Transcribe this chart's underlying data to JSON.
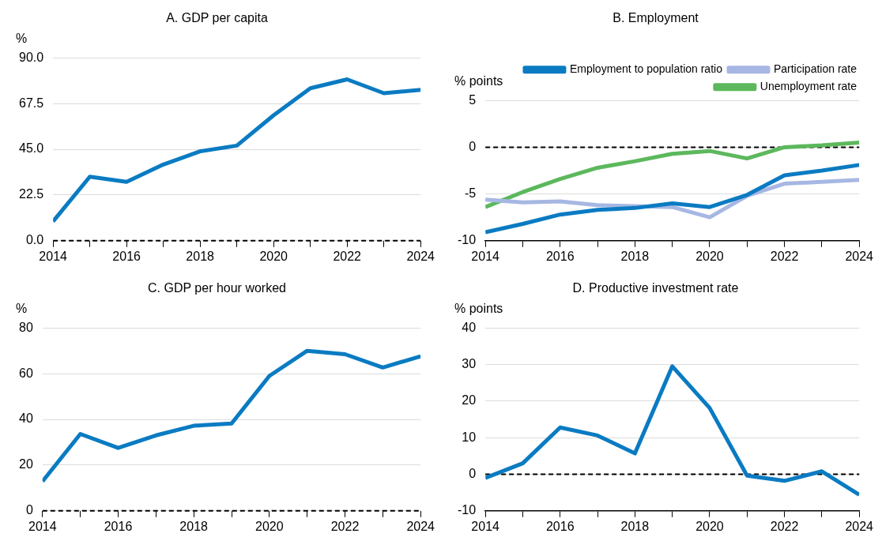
{
  "chart_data": [
    {
      "type": "line",
      "title": "A. GDP per capita",
      "ylabel": "%",
      "x": [
        2014,
        2015,
        2016,
        2017,
        2018,
        2019,
        2020,
        2021,
        2022,
        2023,
        2024
      ],
      "series": [
        {
          "color": "#0a7bc2",
          "values": [
            9.5,
            31.5,
            29,
            37.5,
            44,
            46.8,
            61.7,
            75,
            79.4,
            72.6,
            74.2
          ]
        }
      ],
      "xlim": [
        2014,
        2024
      ],
      "xticks": [
        2014,
        {
          "value": 2015,
          "label": null
        },
        2016,
        {
          "value": 2017,
          "label": null
        },
        2018,
        {
          "value": 2019,
          "label": null
        },
        2020,
        {
          "value": 2021,
          "label": null
        },
        2022,
        {
          "value": 2023,
          "label": null
        },
        2024
      ],
      "ylim": [
        0,
        90
      ],
      "yticks": [
        {
          "value": 0,
          "label": "0.0"
        },
        22.5,
        {
          "value": 45,
          "label": "45.0"
        },
        67.5,
        {
          "value": 90,
          "label": "90.0"
        }
      ],
      "grid": "y",
      "legend": false,
      "marker": "none",
      "line_style": "solid",
      "ref_lines": [
        {
          "axis": "y",
          "value": 0,
          "color": "#000000",
          "line_style": "dashed"
        }
      ]
    },
    {
      "type": "line",
      "title": "B. Employment",
      "ylabel": "% points",
      "x": [
        2014,
        2015,
        2016,
        2017,
        2018,
        2019,
        2020,
        2021,
        2022,
        2023,
        2024
      ],
      "series": [
        {
          "name": "Employment to population ratio",
          "color": "#0a7bc2",
          "values": [
            -9.1,
            -8.2,
            -7.2,
            -6.7,
            -6.5,
            -6.0,
            -6.4,
            -5.1,
            -3.0,
            -2.5,
            -1.9
          ]
        },
        {
          "name": "Participation rate",
          "color": "#a7b7e3",
          "values": [
            -5.6,
            -5.9,
            -5.8,
            -6.2,
            -6.3,
            -6.4,
            -7.5,
            -5.2,
            -3.9,
            -3.7,
            -3.5
          ]
        },
        {
          "name": "Unemployment rate",
          "color": "#5cb85c",
          "values": [
            -6.4,
            -4.8,
            -3.4,
            -2.2,
            -1.5,
            -0.7,
            -0.4,
            -1.2,
            0.0,
            0.2,
            0.5
          ]
        }
      ],
      "xlim": [
        2014,
        2024
      ],
      "xticks": [
        2014,
        {
          "value": 2015,
          "label": null
        },
        2016,
        {
          "value": 2017,
          "label": null
        },
        2018,
        {
          "value": 2019,
          "label": null
        },
        2020,
        {
          "value": 2021,
          "label": null
        },
        2022,
        {
          "value": 2023,
          "label": null
        },
        2024
      ],
      "ylim": [
        -10,
        5
      ],
      "yticks": [
        -10,
        -5,
        0,
        5
      ],
      "grid": "y",
      "legend": "top right",
      "marker": "none",
      "line_style": "solid",
      "ref_lines": [
        {
          "axis": "y",
          "value": 0,
          "color": "#000000",
          "line_style": "dashed"
        }
      ]
    },
    {
      "type": "line",
      "title": "C. GDP per hour worked",
      "ylabel": "%",
      "x": [
        2014,
        2015,
        2016,
        2017,
        2018,
        2019,
        2020,
        2021,
        2022,
        2023,
        2024
      ],
      "series": [
        {
          "color": "#0a7bc2",
          "values": [
            12.9,
            33.6,
            27.5,
            33,
            37.2,
            38.2,
            59,
            70,
            68.5,
            62.7,
            67.6
          ]
        }
      ],
      "xlim": [
        2014,
        2024
      ],
      "xticks": [
        2014,
        {
          "value": 2015,
          "label": null
        },
        2016,
        {
          "value": 2017,
          "label": null
        },
        2018,
        {
          "value": 2019,
          "label": null
        },
        2020,
        {
          "value": 2021,
          "label": null
        },
        2022,
        {
          "value": 2023,
          "label": null
        },
        2024
      ],
      "ylim": [
        0,
        80
      ],
      "yticks": [
        0,
        20,
        40,
        60,
        80
      ],
      "grid": "y",
      "legend": false,
      "marker": "none",
      "line_style": "solid",
      "ref_lines": [
        {
          "axis": "y",
          "value": 0,
          "color": "#000000",
          "line_style": "dashed"
        }
      ]
    },
    {
      "type": "line",
      "title": "D. Productive investment rate",
      "ylabel": "% points",
      "x": [
        2014,
        2015,
        2016,
        2017,
        2018,
        2019,
        2020,
        2021,
        2022,
        2023,
        2024
      ],
      "series": [
        {
          "color": "#0a7bc2",
          "values": [
            -1,
            3,
            12.8,
            10.6,
            5.7,
            29.5,
            18.1,
            -0.4,
            -1.8,
            0.8,
            -5.6
          ]
        }
      ],
      "xlim": [
        2014,
        2024
      ],
      "xticks": [
        2014,
        {
          "value": 2015,
          "label": null
        },
        2016,
        {
          "value": 2017,
          "label": null
        },
        2018,
        {
          "value": 2019,
          "label": null
        },
        2020,
        {
          "value": 2021,
          "label": null
        },
        2022,
        {
          "value": 2023,
          "label": null
        },
        2024
      ],
      "ylim": [
        -10,
        40
      ],
      "yticks": [
        -10,
        0,
        10,
        20,
        30,
        40
      ],
      "grid": "y",
      "legend": false,
      "marker": "none",
      "line_style": "solid",
      "ref_lines": [
        {
          "axis": "y",
          "value": 0,
          "color": "#000000",
          "line_style": "dashed"
        }
      ]
    }
  ]
}
